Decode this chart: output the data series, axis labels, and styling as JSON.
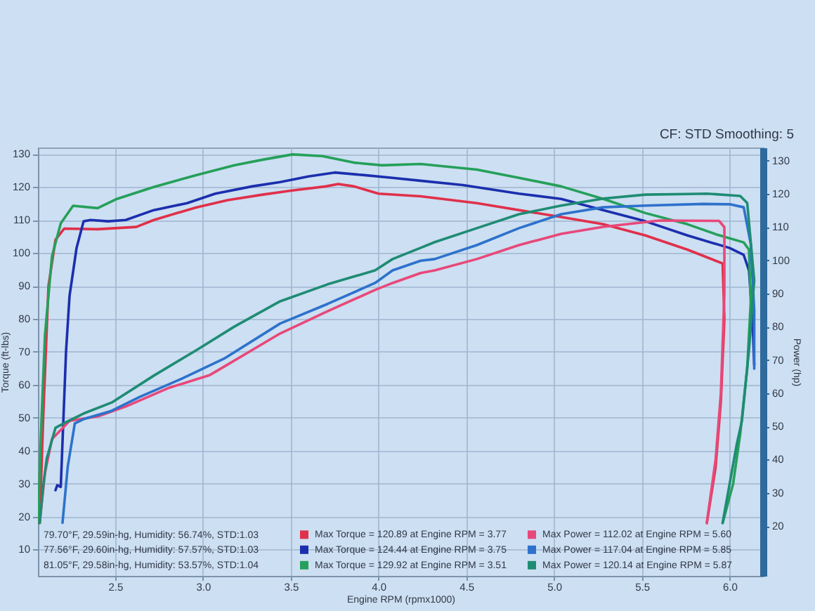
{
  "chart_data": {
    "type": "line",
    "subtitle": "CF: STD Smoothing: 5",
    "xlabel": "Engine RPM (rpmx1000)",
    "ylabel": "Torque (ft-lbs)",
    "y2label": "Power (hp)",
    "annotations": [
      "79.70°F, 29.59in-hg, Humidity: 56.74%, STD:1.03",
      "77.56°F, 29.60in-hg, Humidity: 57.57%, STD:1.03",
      "81.05°F, 29.58in-hg, Humidity: 53.57%, STD:1.04"
    ],
    "xlim": [
      2.06,
      6.19
    ],
    "xticks": [
      2.5,
      {
        "value": 3,
        "label": "3.0"
      },
      3.5,
      {
        "value": 4,
        "label": "4.0"
      },
      4.5,
      {
        "value": 5,
        "label": "5.0"
      },
      5.5,
      {
        "value": 6,
        "label": "6.0"
      }
    ],
    "ylim": [
      2,
      132
    ],
    "yticks": [
      10,
      20,
      30,
      40,
      50,
      60,
      70,
      80,
      90,
      100,
      110,
      120,
      130
    ],
    "y2lim": [
      5,
      134
    ],
    "y2ticks": [
      20,
      30,
      40,
      50,
      60,
      70,
      80,
      90,
      100,
      110,
      120,
      130
    ],
    "grid": true,
    "legend": "bottom",
    "series": [
      {
        "name": "Max Torque = 120.89 at Engine RPM = 3.77",
        "color": "#e0304a",
        "x": [
          2.07,
          2.09,
          2.12,
          2.16,
          2.21,
          2.4,
          2.62,
          2.72,
          2.96,
          3.14,
          3.34,
          3.5,
          3.7,
          3.77,
          3.86,
          4.0,
          4.24,
          4.56,
          5.04,
          5.28,
          5.52,
          5.76,
          5.96,
          5.97,
          5.95,
          5.92,
          5.87
        ],
        "values": [
          18,
          50,
          90,
          104,
          107.4,
          107.2,
          107.9,
          110,
          113.8,
          116,
          117.7,
          118.9,
          120.2,
          120.9,
          120.2,
          118,
          117.2,
          115.1,
          110.9,
          108.7,
          105.3,
          101,
          96.8,
          80,
          55,
          35,
          18
        ]
      },
      {
        "name": "Max Power = 112.02 at Engine RPM = 5.60",
        "color": "#e8487a",
        "axis": "y2",
        "x": [
          2.07,
          2.1,
          2.14,
          2.24,
          2.4,
          2.56,
          2.8,
          3.04,
          3.12,
          3.44,
          3.71,
          3.98,
          4.08,
          4.24,
          4.32,
          4.56,
          4.8,
          5.04,
          5.28,
          5.6,
          5.94,
          5.97,
          5.97,
          5.95,
          5.92,
          5.87
        ],
        "values": [
          21,
          36,
          46.2,
          51.7,
          53,
          56,
          61.5,
          65.5,
          68,
          78,
          84.7,
          91.1,
          93.2,
          96.2,
          97,
          100.4,
          104.6,
          108,
          110.1,
          112.0,
          111.9,
          110,
          90,
          60,
          40,
          21
        ]
      },
      {
        "name": "Max Torque = 124.44 at Engine RPM = 3.75",
        "color": "#1b2fae",
        "x": [
          2.16,
          2.17,
          2.19,
          2.22,
          2.24,
          2.28,
          2.32,
          2.36,
          2.46,
          2.56,
          2.72,
          2.91,
          3.07,
          3.28,
          3.44,
          3.6,
          3.75,
          3.92,
          4.08,
          4.24,
          4.48,
          4.8,
          5.04,
          5.28,
          5.52,
          5.76,
          6.0,
          6.08,
          6.11,
          6.13,
          6.14
        ],
        "values": [
          28,
          29.5,
          29,
          70,
          87,
          101.5,
          109.6,
          110,
          109.6,
          110,
          113,
          115.1,
          118,
          120.2,
          121.5,
          123.2,
          124.4,
          123.6,
          122.8,
          121.9,
          120.6,
          118,
          116.4,
          113,
          109.6,
          105.3,
          101.5,
          99.4,
          94.7,
          80,
          66
        ]
      },
      {
        "name": "Max Power = 117.04 at Engine RPM = 5.85",
        "color": "#2d72cc",
        "axis": "y2",
        "x": [
          2.2,
          2.23,
          2.27,
          2.32,
          2.48,
          2.64,
          2.88,
          3.12,
          3.44,
          3.71,
          3.98,
          4.08,
          4.24,
          4.32,
          4.56,
          4.8,
          5.04,
          5.28,
          5.52,
          5.85,
          6.0,
          6.08,
          6.12,
          6.14,
          6.14
        ],
        "values": [
          21,
          38,
          50.9,
          52.2,
          54.7,
          58.9,
          64.4,
          70.4,
          81,
          86.9,
          93.2,
          97,
          99.9,
          100.4,
          104.6,
          109.7,
          113.9,
          116,
          116.5,
          117.0,
          116.9,
          116,
          105,
          85,
          67.4
        ]
      },
      {
        "name": "Max Torque = 129.92 at Engine RPM = 3.51",
        "color": "#25a05a",
        "x": [
          2.06,
          2.08,
          2.1,
          2.14,
          2.19,
          2.26,
          2.4,
          2.51,
          2.72,
          2.96,
          3.18,
          3.34,
          3.51,
          3.68,
          3.86,
          4.02,
          4.24,
          4.56,
          4.8,
          5.04,
          5.28,
          5.52,
          5.76,
          5.92,
          6.08,
          6.11,
          6.12,
          6.1,
          6.06,
          6.02,
          5.96
        ],
        "values": [
          18,
          49,
          75,
          99,
          109,
          114.3,
          113.6,
          116.4,
          120,
          123.6,
          126.6,
          128.3,
          129.9,
          129.4,
          127.4,
          126.6,
          127,
          125.3,
          122.8,
          120.2,
          116.4,
          112.1,
          108.7,
          105.7,
          103.2,
          101,
          85,
          65,
          45,
          30,
          18
        ]
      },
      {
        "name": "Max Power = 120.14 at Engine RPM = 5.87",
        "color": "#1e8c74",
        "axis": "y2",
        "x": [
          2.07,
          2.09,
          2.11,
          2.16,
          2.22,
          2.32,
          2.48,
          2.72,
          2.96,
          3.18,
          3.44,
          3.71,
          3.98,
          4.08,
          4.24,
          4.32,
          4.56,
          4.8,
          5.04,
          5.28,
          5.52,
          5.76,
          5.87,
          6.06,
          6.1,
          6.14,
          6.11,
          6.07,
          6.04,
          5.96
        ],
        "values": [
          21,
          32,
          40.3,
          49.6,
          51.3,
          53.9,
          57.2,
          65.3,
          72.9,
          80.1,
          87.7,
          92.8,
          97,
          100.4,
          103.8,
          105.5,
          109.7,
          113.9,
          116.5,
          118.6,
          119.8,
          120.0,
          120.1,
          119.4,
          117.3,
          94,
          73,
          51.7,
          44.5,
          21
        ]
      }
    ]
  }
}
